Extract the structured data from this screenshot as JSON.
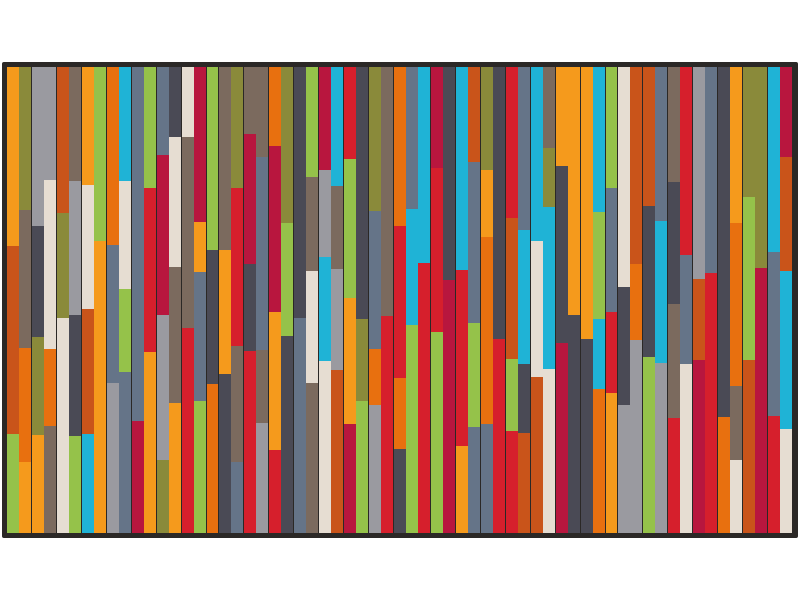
{
  "image": {
    "subject": "doormat",
    "border_color": "#2b2826",
    "palette": [
      "#1fb3d6",
      "#4a4a55",
      "#e8700f",
      "#f59a1c",
      "#7b6a5e",
      "#e6ddd2",
      "#657488",
      "#b8163e",
      "#95c24a",
      "#8a8a3a",
      "#d61f2c",
      "#9a9aa0",
      "#c9541a"
    ],
    "stripe_count": 63
  }
}
